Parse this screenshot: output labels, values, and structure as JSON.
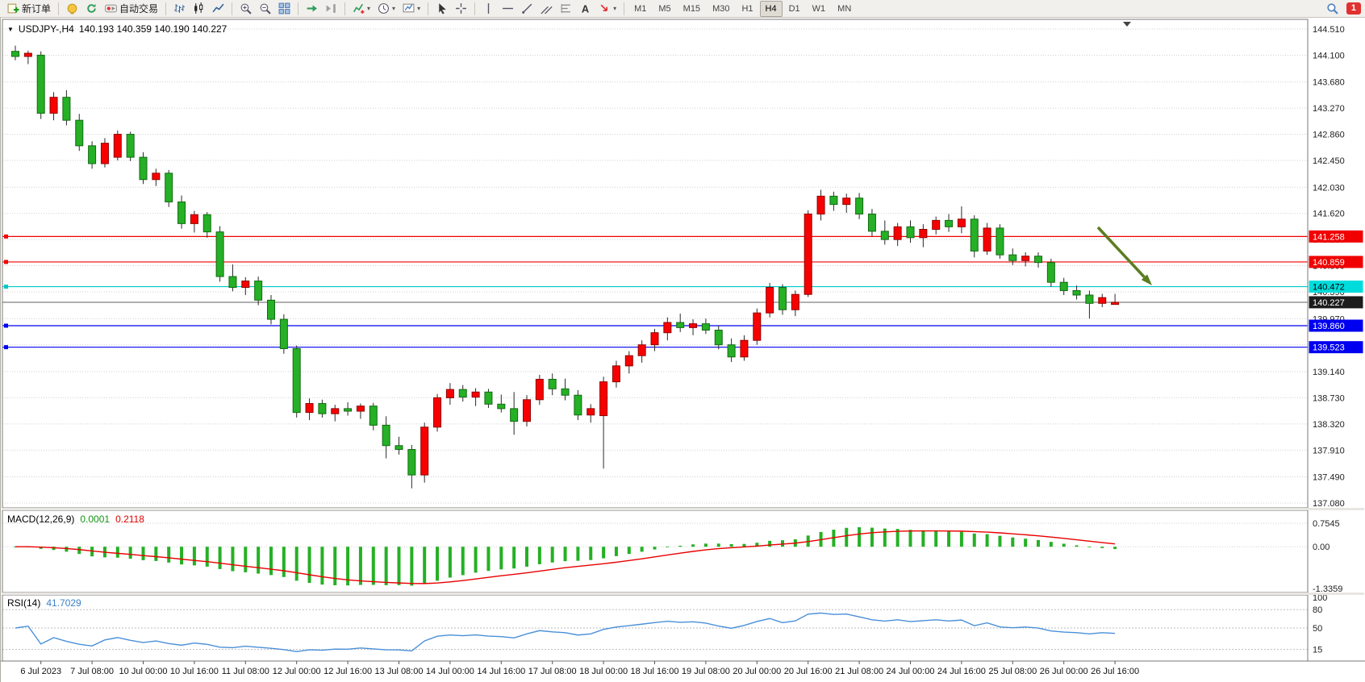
{
  "toolbar": {
    "buttons": [
      {
        "name": "new-order-button",
        "icon": "new-order",
        "label": "新订单"
      },
      {
        "name": "separator"
      },
      {
        "name": "metaeditor-button",
        "icon": "metaeditor"
      },
      {
        "name": "refresh-button",
        "icon": "refresh"
      },
      {
        "name": "autotrading-button",
        "icon": "autotrading",
        "label": "自动交易"
      },
      {
        "name": "separator"
      },
      {
        "name": "bar-chart-button",
        "icon": "bars"
      },
      {
        "name": "candle-chart-button",
        "icon": "candles"
      },
      {
        "name": "line-chart-button",
        "icon": "linechart"
      },
      {
        "name": "separator"
      },
      {
        "name": "zoom-in-button",
        "icon": "zoom-in"
      },
      {
        "name": "zoom-out-button",
        "icon": "zoom-out"
      },
      {
        "name": "tile-windows-button",
        "icon": "grid"
      },
      {
        "name": "separator"
      },
      {
        "name": "auto-scroll-button",
        "icon": "autoscroll"
      },
      {
        "name": "chart-shift-button",
        "icon": "shift"
      },
      {
        "name": "separator"
      },
      {
        "name": "indicators-button",
        "icon": "indicators",
        "caret": true
      },
      {
        "name": "periods-button",
        "icon": "clock",
        "caret": true
      },
      {
        "name": "templates-button",
        "icon": "template",
        "caret": true
      },
      {
        "name": "separator"
      },
      {
        "name": "cursor-button",
        "icon": "cursor"
      },
      {
        "name": "crosshair-button",
        "icon": "crosshair"
      },
      {
        "name": "separator"
      },
      {
        "name": "vertical-line-button",
        "icon": "vline"
      },
      {
        "name": "horizontal-line-button",
        "icon": "hline"
      },
      {
        "name": "trendline-button",
        "icon": "trendline"
      },
      {
        "name": "channel-button",
        "icon": "channel"
      },
      {
        "name": "fibonacci-button",
        "icon": "fibo"
      },
      {
        "name": "text-button",
        "icon": "text"
      },
      {
        "name": "arrows-button",
        "icon": "arrows",
        "caret": true
      },
      {
        "name": "separator"
      }
    ],
    "timeframes": [
      "M1",
      "M5",
      "M15",
      "M30",
      "H1",
      "H4",
      "D1",
      "W1",
      "MN"
    ],
    "active_timeframe": "H4",
    "notification_count": "1"
  },
  "chart": {
    "title": {
      "symbol": "USDJPY-,H4",
      "ohlc": "140.193 140.359 140.190 140.227"
    }
  },
  "chart_data": {
    "type": "candlestick",
    "symbol": "USDJPY-",
    "period": "H4",
    "current_bar": {
      "open": 140.193,
      "high": 140.359,
      "low": 140.19,
      "close": 140.227
    },
    "up_color": "#f80000",
    "down_color": "#25b025",
    "price_axis_labels": [
      "144.510",
      "144.100",
      "143.680",
      "143.270",
      "142.860",
      "142.450",
      "142.030",
      "141.620",
      "141.210",
      "140.800",
      "140.390",
      "139.970",
      "139.560",
      "139.140",
      "138.730",
      "138.320",
      "137.910",
      "137.490",
      "137.080"
    ],
    "price_axis_range": [
      137.08,
      144.51
    ],
    "time_labels": [
      "6 Jul 2023",
      "7 Jul 08:00",
      "10 Jul 00:00",
      "10 Jul 16:00",
      "11 Jul 08:00",
      "12 Jul 00:00",
      "12 Jul 16:00",
      "13 Jul 08:00",
      "14 Jul 00:00",
      "14 Jul 16:00",
      "17 Jul 08:00",
      "18 Jul 00:00",
      "18 Jul 16:00",
      "19 Jul 08:00",
      "20 Jul 00:00",
      "20 Jul 16:00",
      "21 Jul 08:00",
      "24 Jul 00:00",
      "24 Jul 16:00",
      "25 Jul 08:00",
      "26 Jul 00:00",
      "26 Jul 16:00"
    ],
    "bars_per_label_gap": 4,
    "candles": [
      [
        144.16,
        144.25,
        144.02,
        144.08
      ],
      [
        144.08,
        144.17,
        143.96,
        144.13
      ],
      [
        144.1,
        144.16,
        143.1,
        143.19
      ],
      [
        143.19,
        143.52,
        143.08,
        143.44
      ],
      [
        143.44,
        143.55,
        143.0,
        143.08
      ],
      [
        143.08,
        143.18,
        142.6,
        142.68
      ],
      [
        142.68,
        142.75,
        142.32,
        142.4
      ],
      [
        142.4,
        142.8,
        142.34,
        142.72
      ],
      [
        142.5,
        142.92,
        142.45,
        142.86
      ],
      [
        142.86,
        142.9,
        142.44,
        142.5
      ],
      [
        142.5,
        142.58,
        142.08,
        142.15
      ],
      [
        142.15,
        142.32,
        142.05,
        142.25
      ],
      [
        142.25,
        142.3,
        141.72,
        141.8
      ],
      [
        141.8,
        141.9,
        141.38,
        141.46
      ],
      [
        141.46,
        141.66,
        141.32,
        141.6
      ],
      [
        141.6,
        141.64,
        141.24,
        141.33
      ],
      [
        141.33,
        141.42,
        140.55,
        140.63
      ],
      [
        140.63,
        140.82,
        140.4,
        140.46
      ],
      [
        140.46,
        140.62,
        140.34,
        140.56
      ],
      [
        140.56,
        140.63,
        140.18,
        140.26
      ],
      [
        140.26,
        140.34,
        139.88,
        139.96
      ],
      [
        139.96,
        140.04,
        139.42,
        139.5
      ],
      [
        139.5,
        139.55,
        138.42,
        138.5
      ],
      [
        138.5,
        138.72,
        138.38,
        138.64
      ],
      [
        138.64,
        138.7,
        138.42,
        138.48
      ],
      [
        138.48,
        138.62,
        138.36,
        138.56
      ],
      [
        138.56,
        138.66,
        138.45,
        138.52
      ],
      [
        138.52,
        138.64,
        138.4,
        138.6
      ],
      [
        138.6,
        138.65,
        138.22,
        138.3
      ],
      [
        138.3,
        138.44,
        137.78,
        137.98
      ],
      [
        137.98,
        138.12,
        137.84,
        137.92
      ],
      [
        137.92,
        137.99,
        137.31,
        137.52
      ],
      [
        137.52,
        138.34,
        137.4,
        138.27
      ],
      [
        138.27,
        138.79,
        138.2,
        138.73
      ],
      [
        138.73,
        138.96,
        138.62,
        138.86
      ],
      [
        138.86,
        138.93,
        138.67,
        138.74
      ],
      [
        138.74,
        138.88,
        138.6,
        138.82
      ],
      [
        138.82,
        138.87,
        138.57,
        138.63
      ],
      [
        138.63,
        138.78,
        138.5,
        138.56
      ],
      [
        138.56,
        138.82,
        138.15,
        138.36
      ],
      [
        138.36,
        138.77,
        138.28,
        138.7
      ],
      [
        138.7,
        139.09,
        138.62,
        139.02
      ],
      [
        139.02,
        139.11,
        138.77,
        138.87
      ],
      [
        138.87,
        139.03,
        138.69,
        138.77
      ],
      [
        138.77,
        138.85,
        138.38,
        138.46
      ],
      [
        138.46,
        138.63,
        138.34,
        138.56
      ],
      [
        138.45,
        139.06,
        137.62,
        138.98
      ],
      [
        138.98,
        139.31,
        138.89,
        139.23
      ],
      [
        139.23,
        139.46,
        139.11,
        139.39
      ],
      [
        139.39,
        139.63,
        139.28,
        139.56
      ],
      [
        139.56,
        139.81,
        139.46,
        139.75
      ],
      [
        139.75,
        139.99,
        139.63,
        139.91
      ],
      [
        139.91,
        140.05,
        139.76,
        139.83
      ],
      [
        139.83,
        139.96,
        139.71,
        139.89
      ],
      [
        139.89,
        139.97,
        139.73,
        139.79
      ],
      [
        139.79,
        139.86,
        139.49,
        139.56
      ],
      [
        139.56,
        139.66,
        139.29,
        139.37
      ],
      [
        139.37,
        139.71,
        139.31,
        139.63
      ],
      [
        139.63,
        140.13,
        139.56,
        140.06
      ],
      [
        140.06,
        140.53,
        139.99,
        140.46
      ],
      [
        140.46,
        140.51,
        140.03,
        140.11
      ],
      [
        140.11,
        140.41,
        140.01,
        140.35
      ],
      [
        140.35,
        141.67,
        140.31,
        141.61
      ],
      [
        141.61,
        141.99,
        141.51,
        141.89
      ],
      [
        141.89,
        141.96,
        141.66,
        141.76
      ],
      [
        141.76,
        141.93,
        141.63,
        141.86
      ],
      [
        141.86,
        141.94,
        141.53,
        141.61
      ],
      [
        141.61,
        141.69,
        141.26,
        141.34
      ],
      [
        141.34,
        141.51,
        141.13,
        141.21
      ],
      [
        141.21,
        141.47,
        141.11,
        141.41
      ],
      [
        141.41,
        141.51,
        141.16,
        141.24
      ],
      [
        141.24,
        141.45,
        141.09,
        141.37
      ],
      [
        141.37,
        141.57,
        141.29,
        141.51
      ],
      [
        141.51,
        141.61,
        141.33,
        141.41
      ],
      [
        141.41,
        141.73,
        141.31,
        141.53
      ],
      [
        141.53,
        141.59,
        140.93,
        141.03
      ],
      [
        141.03,
        141.47,
        140.97,
        141.39
      ],
      [
        141.39,
        141.45,
        140.91,
        140.97
      ],
      [
        140.97,
        141.07,
        140.81,
        140.88
      ],
      [
        140.88,
        141.01,
        140.79,
        140.95
      ],
      [
        140.95,
        141.01,
        140.77,
        140.85
      ],
      [
        140.85,
        140.91,
        140.47,
        140.54
      ],
      [
        140.54,
        140.61,
        140.34,
        140.41
      ],
      [
        140.41,
        140.49,
        140.27,
        140.34
      ],
      [
        140.34,
        140.41,
        139.97,
        140.21
      ],
      [
        140.21,
        140.36,
        140.15,
        140.3
      ],
      [
        140.193,
        140.359,
        140.19,
        140.227
      ]
    ],
    "hlines": [
      {
        "name": "resistance-line-1",
        "price": 141.258,
        "label": "141.258",
        "color": "#f00000",
        "badge_bg": "#f00000",
        "badge_fg": "#ffffff"
      },
      {
        "name": "resistance-line-2",
        "price": 140.859,
        "label": "140.859",
        "color": "#f00000",
        "badge_bg": "#f00000",
        "badge_fg": "#ffffff"
      },
      {
        "name": "support-line-cyan",
        "price": 140.472,
        "label": "140.472",
        "color": "#00c8c8",
        "badge_bg": "#00dcdc",
        "badge_fg": "#000000"
      },
      {
        "name": "current-price-line",
        "price": 140.227,
        "label": "140.227",
        "color": "#606060",
        "badge_bg": "#1c1c1c",
        "badge_fg": "#ffffff",
        "is_current_price": true
      },
      {
        "name": "support-line-blue-1",
        "price": 139.86,
        "label": "139.860",
        "color": "#0000f0",
        "badge_bg": "#0000f0",
        "badge_fg": "#ffffff"
      },
      {
        "name": "support-line-blue-2",
        "price": 139.523,
        "label": "139.523",
        "color": "#0000f0",
        "badge_bg": "#0000f0",
        "badge_fg": "#ffffff"
      }
    ],
    "annotation_arrow": {
      "description": "down-right green arrow pointing at cyan level right of last candle",
      "color": "#5a7d1f"
    },
    "indicators": [
      {
        "name": "MACD",
        "label": "MACD(12,26,9)",
        "value_main": "0.0001",
        "value_signal": "0.2118",
        "axis_labels": [
          "0.7545",
          "0.00",
          "-1.3359"
        ],
        "axis_values": [
          0.7545,
          0,
          -1.3359
        ],
        "histogram_color": "#25b025",
        "signal_color": "#e80000"
      },
      {
        "name": "RSI",
        "label": "RSI(14)",
        "value": "41.7029",
        "axis_labels": [
          "100",
          "80",
          "50",
          "15"
        ],
        "axis_values": [
          100,
          80,
          50,
          15
        ],
        "line_color": "#4a90d9",
        "scale": [
          0,
          100
        ]
      }
    ]
  }
}
